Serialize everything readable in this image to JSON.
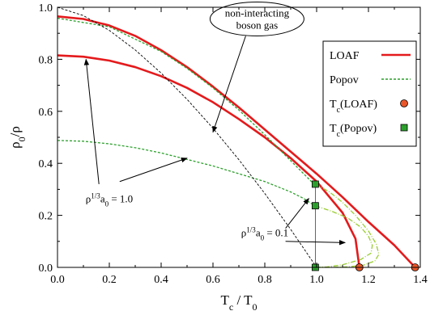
{
  "chart_data": {
    "type": "line",
    "xlabel": "T_c / T_0",
    "ylabel": "ρ_0/ρ",
    "xlim": [
      0.0,
      1.4
    ],
    "ylim": [
      0.0,
      1.0
    ],
    "grid": false,
    "legend_position": "top-right",
    "x_ticks": [
      0.0,
      0.2,
      0.4,
      0.6,
      0.8,
      1.0,
      1.2,
      1.4
    ],
    "x_tick_labels": [
      "0.0",
      "0.2",
      "0.4",
      "0.6",
      "0.8",
      "1.0",
      "1.2",
      "1.4"
    ],
    "y_ticks": [
      0.0,
      0.2,
      0.4,
      0.6,
      0.8,
      1.0
    ],
    "y_tick_labels": [
      "0.0",
      "0.2",
      "0.4",
      "0.6",
      "0.8",
      "1.0"
    ],
    "legend": [
      {
        "label": "LOAF",
        "kind": "line",
        "color": "#e41a1c",
        "dash": ""
      },
      {
        "label": "Popov",
        "kind": "line",
        "color": "#2ca02c",
        "dash": "3,2"
      },
      {
        "label": "T_c(LOAF)",
        "kind": "circle",
        "color": "#e8562a"
      },
      {
        "label": "T_c(Popov)",
        "kind": "square",
        "color": "#2ca02c"
      }
    ],
    "series": [
      {
        "group": "loaf",
        "color": "#e41a1c",
        "dash": "",
        "width": 2.6,
        "points": [
          [
            0.0,
            0.815
          ],
          [
            0.1,
            0.81
          ],
          [
            0.2,
            0.795
          ],
          [
            0.3,
            0.77
          ],
          [
            0.4,
            0.735
          ],
          [
            0.5,
            0.69
          ],
          [
            0.6,
            0.635
          ],
          [
            0.7,
            0.57
          ],
          [
            0.8,
            0.5
          ],
          [
            0.9,
            0.42
          ],
          [
            1.0,
            0.33
          ],
          [
            1.1,
            0.21
          ],
          [
            1.15,
            0.11
          ],
          [
            1.165,
            0.0
          ]
        ]
      },
      {
        "group": "loaf",
        "color": "#e41a1c",
        "dash": "",
        "width": 2.6,
        "points": [
          [
            0.0,
            0.965
          ],
          [
            0.1,
            0.955
          ],
          [
            0.2,
            0.93
          ],
          [
            0.3,
            0.89
          ],
          [
            0.4,
            0.835
          ],
          [
            0.5,
            0.77
          ],
          [
            0.6,
            0.695
          ],
          [
            0.7,
            0.615
          ],
          [
            0.8,
            0.53
          ],
          [
            0.9,
            0.445
          ],
          [
            1.0,
            0.36
          ],
          [
            1.1,
            0.27
          ],
          [
            1.2,
            0.175
          ],
          [
            1.3,
            0.085
          ],
          [
            1.38,
            0.0
          ]
        ]
      },
      {
        "group": "popov",
        "color": "#2ca02c",
        "dash": "3,2",
        "width": 1.3,
        "points": [
          [
            0.0,
            0.958
          ],
          [
            0.2,
            0.925
          ],
          [
            0.4,
            0.83
          ],
          [
            0.5,
            0.765
          ],
          [
            0.6,
            0.69
          ],
          [
            0.7,
            0.605
          ],
          [
            0.8,
            0.51
          ],
          [
            0.9,
            0.41
          ],
          [
            0.95,
            0.36
          ],
          [
            0.98,
            0.33
          ],
          [
            0.995,
            0.32
          ]
        ]
      },
      {
        "group": "popov",
        "color": "#2ca02c",
        "dash": "3,2",
        "width": 1.3,
        "points": [
          [
            0.0,
            0.488
          ],
          [
            0.1,
            0.485
          ],
          [
            0.2,
            0.475
          ],
          [
            0.3,
            0.46
          ],
          [
            0.4,
            0.44
          ],
          [
            0.5,
            0.415
          ],
          [
            0.6,
            0.39
          ],
          [
            0.7,
            0.36
          ],
          [
            0.8,
            0.33
          ],
          [
            0.9,
            0.29
          ],
          [
            0.95,
            0.265
          ],
          [
            0.98,
            0.245
          ],
          [
            0.995,
            0.237
          ]
        ]
      },
      {
        "group": "popov-unstable",
        "color": "#9acd32",
        "dash": "6,2,1,2",
        "width": 1.3,
        "points": [
          [
            0.995,
            0.32
          ],
          [
            1.05,
            0.29
          ],
          [
            1.1,
            0.25
          ],
          [
            1.15,
            0.2
          ],
          [
            1.2,
            0.14
          ],
          [
            1.23,
            0.09
          ],
          [
            1.24,
            0.05
          ],
          [
            1.225,
            0.025
          ],
          [
            1.18,
            0.008
          ],
          [
            1.12,
            0.002
          ],
          [
            1.05,
            0.0
          ],
          [
            0.995,
            0.0
          ]
        ]
      },
      {
        "group": "popov-unstable",
        "color": "#9acd32",
        "dash": "6,2,1,2",
        "width": 1.3,
        "points": [
          [
            0.995,
            0.237
          ],
          [
            1.06,
            0.215
          ],
          [
            1.12,
            0.19
          ],
          [
            1.17,
            0.155
          ],
          [
            1.2,
            0.12
          ],
          [
            1.215,
            0.085
          ],
          [
            1.21,
            0.055
          ],
          [
            1.17,
            0.03
          ],
          [
            1.1,
            0.01
          ],
          [
            1.04,
            0.002
          ],
          [
            0.995,
            0.0
          ]
        ]
      },
      {
        "group": "ideal",
        "color": "#000000",
        "dash": "3,2",
        "width": 0.9,
        "points": [
          [
            0.0,
            1.0
          ],
          [
            0.1,
            0.968
          ],
          [
            0.2,
            0.911
          ],
          [
            0.3,
            0.836
          ],
          [
            0.4,
            0.747
          ],
          [
            0.5,
            0.646
          ],
          [
            0.6,
            0.535
          ],
          [
            0.7,
            0.414
          ],
          [
            0.8,
            0.284
          ],
          [
            0.9,
            0.146
          ],
          [
            1.0,
            0.0
          ]
        ]
      },
      {
        "group": "vertical",
        "color": "#000000",
        "dash": "",
        "width": 0.6,
        "points": [
          [
            0.995,
            0.0
          ],
          [
            0.995,
            0.32
          ]
        ]
      }
    ],
    "markers": [
      {
        "kind": "circle",
        "x": 1.165,
        "y": 0.0,
        "color": "#e8562a"
      },
      {
        "kind": "circle",
        "x": 1.38,
        "y": 0.0,
        "color": "#e8562a"
      },
      {
        "kind": "square",
        "x": 0.995,
        "y": 0.32,
        "color": "#2ca02c"
      },
      {
        "kind": "square",
        "x": 0.995,
        "y": 0.237,
        "color": "#2ca02c"
      },
      {
        "kind": "square",
        "x": 0.995,
        "y": 0.0,
        "color": "#2ca02c"
      }
    ],
    "annotations": {
      "ideal_gas": {
        "line1": "non-interacting",
        "line2": "boson gas",
        "center": [
          0.77,
          0.955
        ],
        "arrow_to": [
          0.6,
          0.52
        ]
      },
      "rho_one": {
        "text": "ρ^{1/3}a_0 = 1.0",
        "anchor": [
          0.2,
          0.25
        ],
        "arrows": [
          [
            [
              0.16,
              0.32
            ],
            [
              0.11,
              0.8
            ]
          ],
          [
            [
              0.24,
              0.33
            ],
            [
              0.5,
              0.42
            ]
          ]
        ]
      },
      "rho_two": {
        "text": "ρ^{1/3}a_0 = 0.1",
        "anchor": [
          0.8,
          0.12
        ],
        "arrows": [
          [
            [
              0.88,
              0.15
            ],
            [
              0.97,
              0.265
            ]
          ],
          [
            [
              0.88,
              0.1
            ],
            [
              1.11,
              0.095
            ]
          ]
        ]
      }
    }
  }
}
